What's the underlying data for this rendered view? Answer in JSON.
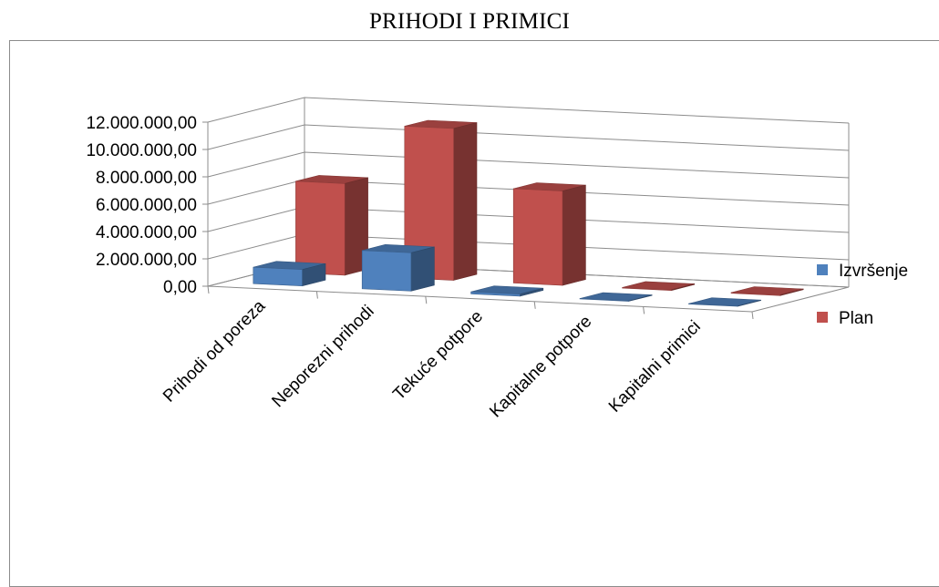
{
  "chart_data": {
    "type": "bar",
    "title": "PRIHODI I PRIMICI",
    "categories": [
      "Prihodi od poreza",
      "Neporezni prihodi",
      "Tekuće potpore",
      "Kapitalne potpore",
      "Kapitalni primici"
    ],
    "series": [
      {
        "name": "Izvršenje",
        "values": [
          1200000,
          2800000,
          150000,
          30000,
          30000
        ]
      },
      {
        "name": "Plan",
        "values": [
          6700000,
          11100000,
          6900000,
          50000,
          50000
        ]
      }
    ],
    "ylim": [
      0,
      12000000
    ],
    "yticks": [
      "0,00",
      "2.000.000,00",
      "4.000.000,00",
      "6.000.000,00",
      "8.000.000,00",
      "10.000.000,00",
      "12.000.000,00"
    ],
    "grid": true,
    "legend": "right",
    "colors": {
      "Izvršenje": "#4f81bd",
      "Plan": "#c0504d"
    }
  }
}
